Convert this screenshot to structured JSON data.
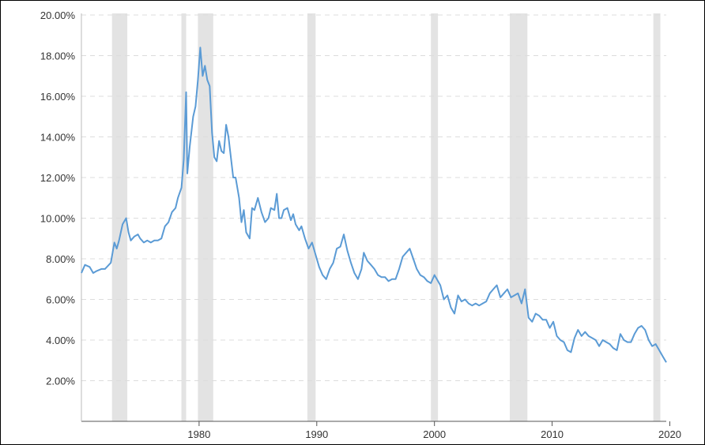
{
  "chart_data": {
    "type": "line",
    "title": "",
    "xlabel": "",
    "ylabel": "",
    "xlim": [
      1970.0,
      2019.7
    ],
    "ylim": [
      0,
      20
    ],
    "grid": true,
    "y_ticks": [
      {
        "value": 2,
        "label": "2.00%"
      },
      {
        "value": 4,
        "label": "4.00%"
      },
      {
        "value": 6,
        "label": "6.00%"
      },
      {
        "value": 8,
        "label": "8.00%"
      },
      {
        "value": 10,
        "label": "10.00%"
      },
      {
        "value": 12,
        "label": "12.00%"
      },
      {
        "value": 14,
        "label": "14.00%"
      },
      {
        "value": 16,
        "label": "16.00%"
      },
      {
        "value": 18,
        "label": "18.00%"
      },
      {
        "value": 20,
        "label": "20.00%"
      }
    ],
    "x_ticks": [
      {
        "value": 1980,
        "label": "1980"
      },
      {
        "value": 1990,
        "label": "1990"
      },
      {
        "value": 2000,
        "label": "2000"
      },
      {
        "value": 2010,
        "label": "2010"
      },
      {
        "value": 2020,
        "label": "2020"
      }
    ],
    "recessions": [
      [
        1972.6,
        1973.9
      ],
      [
        1978.5,
        1978.9
      ],
      [
        1979.9,
        1981.2
      ],
      [
        1989.2,
        1989.9
      ],
      [
        1999.7,
        2000.3
      ],
      [
        2006.4,
        2007.9
      ],
      [
        2018.6,
        2019.2
      ]
    ],
    "series": [
      {
        "color": "#5b9bd5",
        "x": [
          1970.0,
          1970.3,
          1970.7,
          1971.0,
          1971.3,
          1971.7,
          1972.0,
          1972.5,
          1972.8,
          1973.0,
          1973.2,
          1973.5,
          1973.8,
          1974.0,
          1974.2,
          1974.5,
          1974.8,
          1975.0,
          1975.3,
          1975.6,
          1975.9,
          1976.2,
          1976.5,
          1976.8,
          1977.1,
          1977.4,
          1977.7,
          1978.0,
          1978.2,
          1978.5,
          1978.7,
          1978.9,
          1979.0,
          1979.2,
          1979.5,
          1979.7,
          1979.9,
          1980.1,
          1980.3,
          1980.5,
          1980.7,
          1980.9,
          1981.1,
          1981.3,
          1981.5,
          1981.7,
          1981.9,
          1982.1,
          1982.3,
          1982.5,
          1982.7,
          1982.9,
          1983.1,
          1983.4,
          1983.6,
          1983.8,
          1984.0,
          1984.3,
          1984.5,
          1984.7,
          1985.0,
          1985.3,
          1985.6,
          1985.9,
          1986.1,
          1986.4,
          1986.6,
          1986.8,
          1987.0,
          1987.2,
          1987.5,
          1987.8,
          1988.0,
          1988.2,
          1988.5,
          1988.7,
          1989.0,
          1989.3,
          1989.6,
          1989.9,
          1990.2,
          1990.5,
          1990.8,
          1991.1,
          1991.4,
          1991.7,
          1992.0,
          1992.3,
          1992.6,
          1992.9,
          1993.2,
          1993.5,
          1993.8,
          1994.0,
          1994.3,
          1994.6,
          1994.9,
          1995.2,
          1995.5,
          1995.8,
          1996.1,
          1996.4,
          1996.7,
          1997.0,
          1997.3,
          1997.6,
          1997.9,
          1998.2,
          1998.5,
          1998.8,
          1999.1,
          1999.4,
          1999.7,
          2000.0,
          2000.2,
          2000.5,
          2000.8,
          2001.1,
          2001.4,
          2001.7,
          2002.0,
          2002.3,
          2002.6,
          2002.9,
          2003.2,
          2003.5,
          2003.8,
          2004.1,
          2004.4,
          2004.7,
          2005.0,
          2005.3,
          2005.6,
          2005.9,
          2006.2,
          2006.5,
          2006.8,
          2007.1,
          2007.4,
          2007.7,
          2008.0,
          2008.3,
          2008.6,
          2008.9,
          2009.2,
          2009.5,
          2009.8,
          2010.1,
          2010.4,
          2010.7,
          2011.0,
          2011.3,
          2011.6,
          2011.9,
          2012.2,
          2012.5,
          2012.8,
          2013.1,
          2013.4,
          2013.7,
          2014.0,
          2014.3,
          2014.6,
          2014.9,
          2015.2,
          2015.5,
          2015.8,
          2016.1,
          2016.4,
          2016.7,
          2017.0,
          2017.3,
          2017.6,
          2017.9,
          2018.2,
          2018.5,
          2018.8,
          2019.1,
          2019.4,
          2019.7
        ],
        "y": [
          7.3,
          7.7,
          7.6,
          7.3,
          7.4,
          7.5,
          7.5,
          7.8,
          8.8,
          8.5,
          8.9,
          9.7,
          10.0,
          9.3,
          8.9,
          9.1,
          9.2,
          9.0,
          8.8,
          8.9,
          8.8,
          8.9,
          8.9,
          9.0,
          9.6,
          9.8,
          10.3,
          10.5,
          11.0,
          11.5,
          12.9,
          16.2,
          12.2,
          13.5,
          15.0,
          15.5,
          16.8,
          18.4,
          17.0,
          17.5,
          16.8,
          16.5,
          14.2,
          13.0,
          12.8,
          13.8,
          13.3,
          13.2,
          14.6,
          14.0,
          13.0,
          12.0,
          12.0,
          11.0,
          9.8,
          10.4,
          9.3,
          9.0,
          10.5,
          10.4,
          11.0,
          10.3,
          9.8,
          10.0,
          10.5,
          10.4,
          11.2,
          10.0,
          10.0,
          10.4,
          10.5,
          9.9,
          10.2,
          9.7,
          9.4,
          9.6,
          9.0,
          8.5,
          8.8,
          8.2,
          7.6,
          7.2,
          7.0,
          7.5,
          7.8,
          8.5,
          8.6,
          9.2,
          8.4,
          7.8,
          7.3,
          7.0,
          7.5,
          8.3,
          7.9,
          7.7,
          7.5,
          7.2,
          7.1,
          7.1,
          6.9,
          7.0,
          7.0,
          7.5,
          8.1,
          8.3,
          8.5,
          8.0,
          7.5,
          7.2,
          7.1,
          6.9,
          6.8,
          7.2,
          7.0,
          6.7,
          6.0,
          6.2,
          5.6,
          5.3,
          6.2,
          5.9,
          6.0,
          5.8,
          5.7,
          5.8,
          5.7,
          5.8,
          5.9,
          6.3,
          6.5,
          6.7,
          6.1,
          6.3,
          6.5,
          6.1,
          6.2,
          6.3,
          5.8,
          6.5,
          5.1,
          4.9,
          5.3,
          5.2,
          5.0,
          5.0,
          4.6,
          4.9,
          4.2,
          4.0,
          3.9,
          3.5,
          3.4,
          4.1,
          4.5,
          4.2,
          4.4,
          4.2,
          4.1,
          4.0,
          3.7,
          4.0,
          3.9,
          3.8,
          3.6,
          3.5,
          4.3,
          4.0,
          3.9,
          3.9,
          4.3,
          4.6,
          4.7,
          4.5,
          4.0,
          3.7,
          3.8,
          3.5,
          3.2,
          2.9
        ]
      }
    ]
  }
}
